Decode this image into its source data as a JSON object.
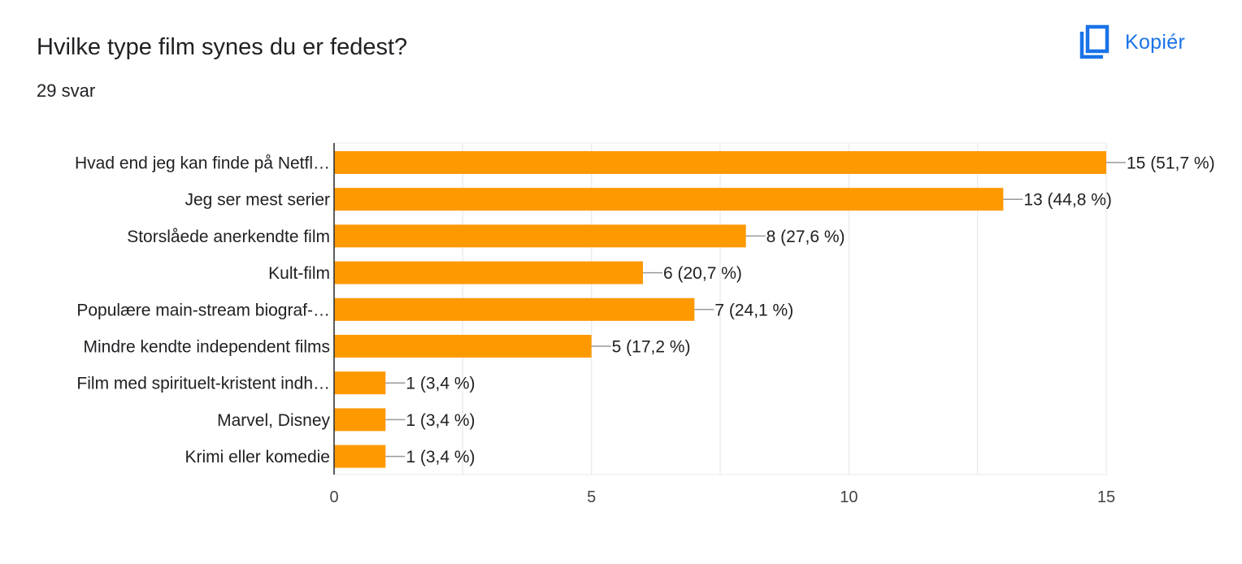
{
  "question": {
    "title": "Hvilke type film synes du er fedest?",
    "response_count": "29 svar"
  },
  "copy_button": {
    "label": "Kopiér",
    "icon": "copy-icon"
  },
  "colors": {
    "bar": "#ff9900",
    "accent": "#1a73e8",
    "grid": "#e8e8e8",
    "axis": "#333333",
    "connector": "#999999"
  },
  "chart_data": {
    "type": "bar",
    "orientation": "horizontal",
    "categories": [
      "Hvad end jeg kan finde på Netfl…",
      "Jeg ser mest serier",
      "Storslåede anerkendte film",
      "Kult-film",
      "Populære main-stream biograf-…",
      "Mindre kendte independent films",
      "Film med spirituelt-kristent indh…",
      "Marvel, Disney",
      "Krimi eller komedie"
    ],
    "values": [
      15,
      13,
      8,
      6,
      7,
      5,
      1,
      1,
      1
    ],
    "value_labels": [
      "15 (51,7 %)",
      "13 (44,8 %)",
      "8 (27,6 %)",
      "6 (20,7 %)",
      "7 (24,1 %)",
      "5 (17,2 %)",
      "1 (3,4 %)",
      "1 (3,4 %)",
      "1 (3,4 %)"
    ],
    "xlim": [
      0,
      15
    ],
    "xticks": [
      0,
      5,
      10,
      15
    ],
    "tick_labels": [
      "0",
      "5",
      "10",
      "15"
    ],
    "grid": true,
    "legend": "none"
  }
}
